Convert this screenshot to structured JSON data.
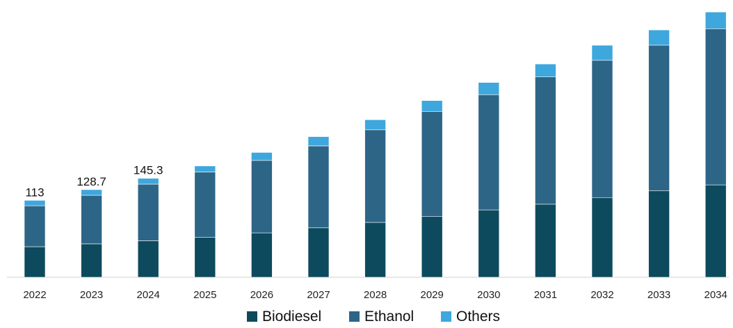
{
  "chart_data": {
    "type": "bar",
    "stacked": true,
    "title": "",
    "xlabel": "",
    "ylabel": "",
    "categories": [
      "2022",
      "2023",
      "2024",
      "2025",
      "2026",
      "2027",
      "2028",
      "2029",
      "2030",
      "2031",
      "2032",
      "2033",
      "2034"
    ],
    "series": [
      {
        "name": "Biodiesel",
        "color": "#0d4a5e",
        "values": [
          44.9,
          49.1,
          53.7,
          58.9,
          65.2,
          72.7,
          80.6,
          89.1,
          98.9,
          107.3,
          117.1,
          126.8,
          135.6
        ]
      },
      {
        "name": "Ethanol",
        "color": "#2d6587",
        "values": [
          60.1,
          71.3,
          83.0,
          95.6,
          106.4,
          120.2,
          135.9,
          154.5,
          169.2,
          186.9,
          201.5,
          214.1,
          229.4
        ]
      },
      {
        "name": "Others",
        "color": "#3ea7dd",
        "values": [
          8.0,
          8.3,
          8.6,
          9.0,
          11.7,
          13.6,
          14.8,
          15.9,
          17.9,
          19.0,
          22.1,
          22.3,
          24.5
        ]
      }
    ],
    "totals": [
      113,
      128.7,
      145.3,
      163.5,
      183.3,
      206.5,
      231.3,
      259.5,
      286.0,
      313.2,
      340.7,
      363.2,
      389.5
    ],
    "data_labels": [
      "113",
      "128.7",
      "145.3",
      "",
      "",
      "",
      "",
      "",
      "",
      "",
      "",
      "",
      ""
    ],
    "ylim": [
      0,
      400
    ],
    "grid": false,
    "legend": {
      "position": "bottom-center",
      "items": [
        "Biodiesel",
        "Ethanol",
        "Others"
      ]
    }
  }
}
